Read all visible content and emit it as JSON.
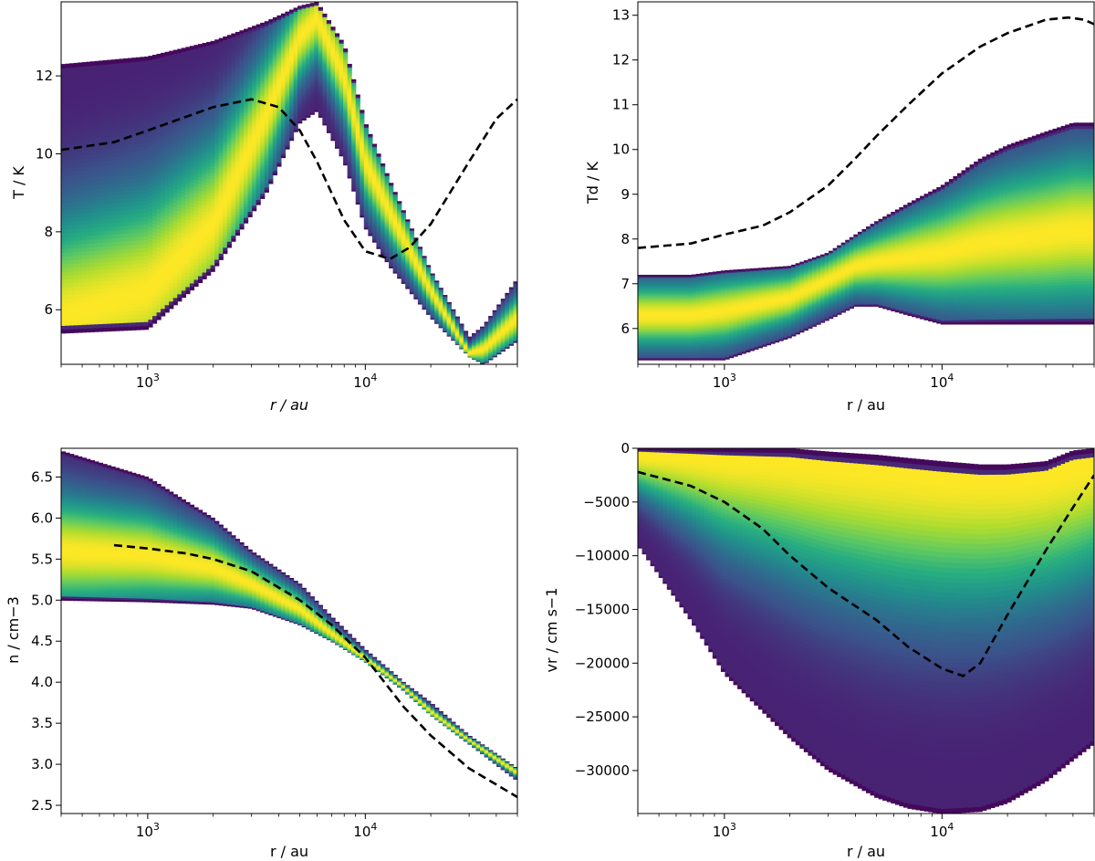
{
  "chart_data": [
    {
      "id": "temperature",
      "type": "heatmap",
      "xlabel": "r / au",
      "ylabel": "T / K",
      "xscale": "log",
      "xlim": [
        400,
        50000
      ],
      "ylim": [
        4.6,
        13.9
      ],
      "xticks": [
        {
          "value": 1000,
          "base": "10",
          "exp": "3"
        },
        {
          "value": 10000,
          "base": "10",
          "exp": "4"
        }
      ],
      "yticks": [
        6,
        8,
        10,
        12
      ],
      "band": {
        "x": [
          400,
          1000,
          2000,
          3500,
          5000,
          6000,
          8000,
          10000,
          13000,
          20000,
          30000,
          35000,
          50000
        ],
        "lower": [
          5.4,
          5.5,
          7.0,
          9.0,
          10.8,
          11.1,
          9.8,
          8.1,
          7.1,
          5.8,
          4.8,
          4.6,
          5.2
        ],
        "upper": [
          12.3,
          12.5,
          12.9,
          13.4,
          13.8,
          13.9,
          12.8,
          10.8,
          9.3,
          7.0,
          5.3,
          5.6,
          6.8
        ],
        "ridge": [
          5.8,
          6.5,
          8.2,
          11.0,
          13.0,
          13.5,
          12.0,
          9.8,
          8.5,
          6.5,
          4.9,
          5.0,
          5.8
        ]
      },
      "line": {
        "style": "dashed",
        "x": [
          400,
          700,
          1000,
          2000,
          3000,
          4000,
          5000,
          6000,
          8000,
          10000,
          13000,
          16000,
          20000,
          30000,
          40000,
          50000
        ],
        "y": [
          10.1,
          10.3,
          10.6,
          11.2,
          11.4,
          11.2,
          10.6,
          9.8,
          8.3,
          7.5,
          7.3,
          7.6,
          8.2,
          9.8,
          10.9,
          11.4
        ]
      }
    },
    {
      "id": "dust-temperature",
      "type": "heatmap",
      "xlabel": "r / au",
      "ylabel": "Td / K",
      "xscale": "log",
      "xlim": [
        400,
        50000
      ],
      "ylim": [
        5.2,
        13.3
      ],
      "xticks": [
        {
          "value": 1000,
          "base": "10",
          "exp": "3"
        },
        {
          "value": 10000,
          "base": "10",
          "exp": "4"
        }
      ],
      "yticks": [
        6,
        7,
        8,
        9,
        10,
        11,
        12,
        13
      ],
      "band": {
        "x": [
          400,
          700,
          1000,
          2000,
          3000,
          4000,
          5000,
          7000,
          10000,
          15000,
          20000,
          30000,
          40000,
          50000
        ],
        "lower": [
          5.3,
          5.3,
          5.3,
          5.8,
          6.2,
          6.5,
          6.5,
          6.3,
          6.1,
          6.1,
          6.1,
          6.1,
          6.1,
          6.1
        ],
        "upper": [
          7.2,
          7.2,
          7.3,
          7.4,
          7.7,
          8.1,
          8.4,
          8.8,
          9.2,
          9.8,
          10.1,
          10.4,
          10.6,
          10.6
        ],
        "ridge": [
          6.3,
          6.3,
          6.4,
          6.7,
          7.1,
          7.4,
          7.5,
          7.6,
          7.7,
          7.9,
          8.0,
          8.1,
          8.2,
          8.2
        ]
      },
      "line": {
        "style": "dashed",
        "x": [
          400,
          700,
          1000,
          1500,
          2000,
          3000,
          4000,
          5000,
          7000,
          10000,
          15000,
          20000,
          30000,
          38000,
          45000,
          50000
        ],
        "y": [
          7.8,
          7.9,
          8.1,
          8.3,
          8.6,
          9.2,
          9.8,
          10.3,
          11.0,
          11.7,
          12.3,
          12.6,
          12.9,
          12.95,
          12.9,
          12.8
        ]
      }
    },
    {
      "id": "density",
      "type": "heatmap",
      "xlabel": "r / au",
      "ylabel": "n / cm−3",
      "xscale": "log",
      "xlim": [
        400,
        50000
      ],
      "ylim": [
        2.4,
        6.85
      ],
      "xticks": [
        {
          "value": 1000,
          "base": "10",
          "exp": "3"
        },
        {
          "value": 10000,
          "base": "10",
          "exp": "4"
        }
      ],
      "yticks": [
        2.5,
        3.0,
        3.5,
        4.0,
        4.5,
        5.0,
        5.5,
        6.0,
        6.5
      ],
      "band": {
        "x": [
          400,
          1000,
          2000,
          3000,
          5000,
          7000,
          10000,
          15000,
          20000,
          30000,
          50000
        ],
        "lower": [
          5.0,
          4.98,
          4.95,
          4.9,
          4.7,
          4.5,
          4.25,
          3.9,
          3.6,
          3.25,
          2.8
        ],
        "upper": [
          6.82,
          6.5,
          6.0,
          5.6,
          5.2,
          4.8,
          4.4,
          4.0,
          3.75,
          3.35,
          2.95
        ],
        "ridge": [
          5.6,
          5.55,
          5.4,
          5.2,
          4.9,
          4.6,
          4.3,
          3.95,
          3.65,
          3.3,
          2.9
        ]
      },
      "line": {
        "style": "dashed",
        "x": [
          700,
          1000,
          1500,
          2000,
          3000,
          5000,
          7000,
          10000,
          15000,
          20000,
          30000,
          50000
        ],
        "y": [
          5.67,
          5.63,
          5.57,
          5.5,
          5.35,
          5.0,
          4.7,
          4.3,
          3.7,
          3.35,
          2.95,
          2.6
        ]
      }
    },
    {
      "id": "radial-velocity",
      "type": "heatmap",
      "xlabel": "r / au",
      "ylabel": "vr / cm s−1",
      "xscale": "log",
      "xlim": [
        400,
        50000
      ],
      "ylim": [
        -34000,
        0
      ],
      "xticks": [
        {
          "value": 1000,
          "base": "10",
          "exp": "3"
        },
        {
          "value": 10000,
          "base": "10",
          "exp": "4"
        }
      ],
      "yticks": [
        -30000,
        -25000,
        -20000,
        -15000,
        -10000,
        -5000,
        0
      ],
      "band": {
        "x": [
          400,
          700,
          1000,
          2000,
          3000,
          5000,
          7000,
          10000,
          15000,
          20000,
          30000,
          40000,
          50000
        ],
        "lower": [
          -9000,
          -16000,
          -21000,
          -27000,
          -30000,
          -32500,
          -33500,
          -34000,
          -33800,
          -33000,
          -31000,
          -29000,
          -27500
        ],
        "upper": [
          0,
          0,
          0,
          0,
          -300,
          -600,
          -900,
          -1200,
          -1500,
          -1500,
          -1200,
          -200,
          0
        ],
        "ridge": [
          -600,
          -800,
          -1000,
          -1300,
          -1600,
          -2000,
          -2300,
          -2600,
          -2800,
          -2800,
          -2600,
          -2000,
          -1500
        ]
      },
      "line": {
        "style": "dashed",
        "x": [
          400,
          700,
          1000,
          1500,
          2000,
          3000,
          5000,
          7000,
          10000,
          12500,
          15000,
          20000,
          30000,
          40000,
          50000
        ],
        "y": [
          -2200,
          -3500,
          -5000,
          -7500,
          -10000,
          -13000,
          -16000,
          -18500,
          -20500,
          -21200,
          -20000,
          -15500,
          -9500,
          -5500,
          -2500
        ]
      }
    }
  ]
}
